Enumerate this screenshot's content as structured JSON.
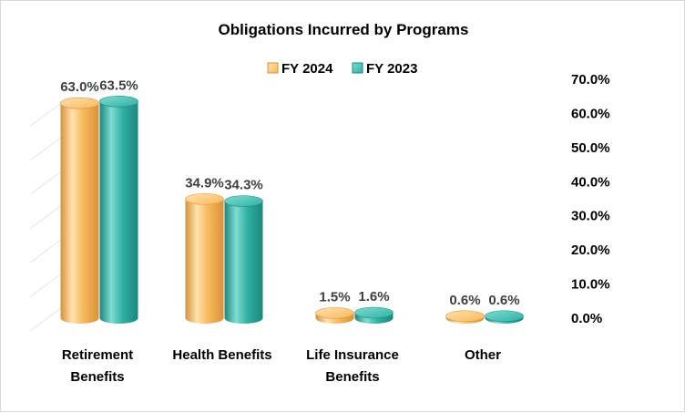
{
  "chart_data": {
    "type": "bar",
    "title": "Obligations Incurred by Programs",
    "categories": [
      [
        "Retirement",
        "Benefits"
      ],
      [
        "Health Benefits"
      ],
      [
        "Life Insurance",
        "Benefits"
      ],
      [
        "Other"
      ]
    ],
    "series": [
      {
        "name": "FY 2024",
        "values": [
          63.0,
          34.9,
          1.5,
          0.6
        ],
        "labels": [
          "63.0%",
          "34.9%",
          "1.5%",
          "0.6%"
        ],
        "color": "#F7B85C",
        "dark": "#D8923A",
        "light": "#FFE2AE"
      },
      {
        "name": "FY 2023",
        "values": [
          63.5,
          34.3,
          1.6,
          0.6
        ],
        "labels": [
          "63.5%",
          "34.3%",
          "1.6%",
          "0.6%"
        ],
        "color": "#2FB0A3",
        "dark": "#1C877C",
        "light": "#7FDCD2"
      }
    ],
    "ylim": [
      0,
      70
    ],
    "yticks": [
      "70.0%",
      "60.0%",
      "50.0%",
      "40.0%",
      "30.0%",
      "20.0%",
      "10.0%",
      "0.0%"
    ],
    "ytick_values": [
      70,
      60,
      50,
      40,
      30,
      20,
      10,
      0
    ],
    "axis_side": "right",
    "legend_position": "top",
    "grid": false
  }
}
